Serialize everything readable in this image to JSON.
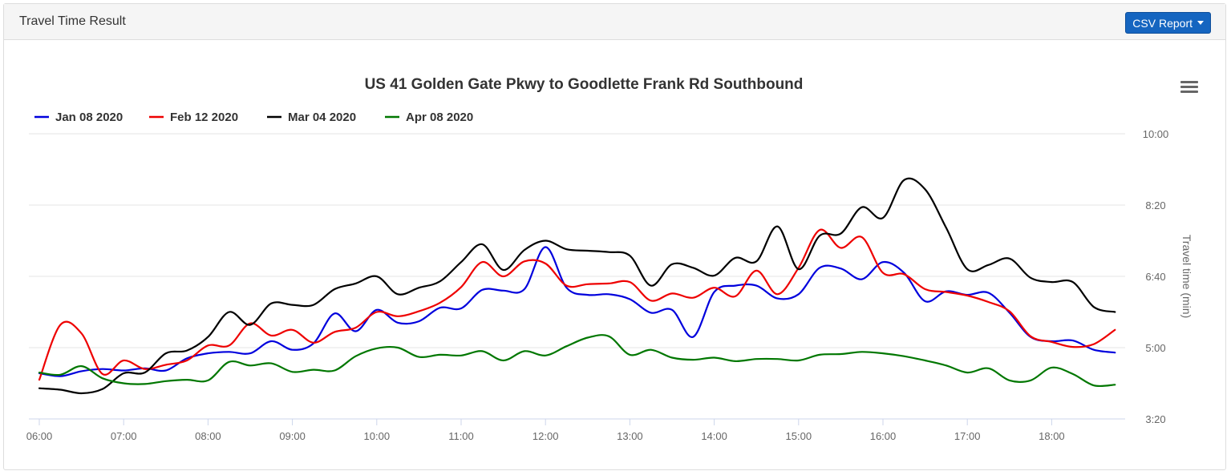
{
  "header": {
    "title": "Travel Time Result",
    "csv_button_label": "CSV Report"
  },
  "colors": {
    "Jan 08 2020": "#0000dd",
    "Feb 12 2020": "#ee0000",
    "Mar 04 2020": "#000000",
    "Apr 08 2020": "#007700"
  },
  "icons": {
    "menu": "hamburger-menu-icon"
  },
  "chart_data": {
    "type": "line",
    "title": "US 41 Golden Gate Pkwy to Goodlette Frank Rd Southbound",
    "xlabel": "",
    "ylabel": "Travel time (min)",
    "xlim": [
      "06:00",
      "18:50"
    ],
    "ylim": [
      200,
      600
    ],
    "y_ticks": [
      200,
      300,
      400,
      500,
      600
    ],
    "y_tick_labels": [
      "3:20",
      "5:00",
      "6:40",
      "8:20",
      "10:00"
    ],
    "x_ticks": [
      "06:00",
      "07:00",
      "08:00",
      "09:00",
      "10:00",
      "11:00",
      "12:00",
      "13:00",
      "14:00",
      "15:00",
      "16:00",
      "17:00",
      "18:00"
    ],
    "x": [
      "06:00",
      "06:15",
      "06:30",
      "06:45",
      "07:00",
      "07:15",
      "07:30",
      "07:45",
      "08:00",
      "08:15",
      "08:30",
      "08:45",
      "09:00",
      "09:15",
      "09:30",
      "09:45",
      "10:00",
      "10:15",
      "10:30",
      "10:45",
      "11:00",
      "11:15",
      "11:30",
      "11:45",
      "12:00",
      "12:15",
      "12:30",
      "12:45",
      "13:00",
      "13:15",
      "13:30",
      "13:45",
      "14:00",
      "14:15",
      "14:30",
      "14:45",
      "15:00",
      "15:15",
      "15:30",
      "15:45",
      "16:00",
      "16:15",
      "16:30",
      "16:45",
      "17:00",
      "17:15",
      "17:30",
      "17:45",
      "18:00",
      "18:15",
      "18:30",
      "18:45"
    ],
    "grid": true,
    "legend": "top-left",
    "series": [
      {
        "name": "Jan 08 2020",
        "values": [
          264,
          260,
          267,
          270,
          268,
          271,
          268,
          285,
          292,
          294,
          292,
          309,
          297,
          306,
          348,
          323,
          353,
          335,
          337,
          356,
          355,
          381,
          380,
          382,
          441,
          384,
          374,
          375,
          368,
          349,
          353,
          315,
          378,
          387,
          387,
          369,
          375,
          412,
          411,
          396,
          420,
          405,
          365,
          379,
          374,
          377,
          349,
          315,
          309,
          310,
          297,
          293
        ]
      },
      {
        "name": "Feb 12 2020",
        "values": [
          255,
          332,
          320,
          263,
          282,
          270,
          276,
          282,
          303,
          303,
          334,
          317,
          325,
          307,
          322,
          328,
          350,
          344,
          351,
          363,
          385,
          420,
          400,
          421,
          418,
          387,
          389,
          390,
          392,
          366,
          376,
          370,
          384,
          372,
          408,
          375,
          412,
          465,
          440,
          455,
          405,
          403,
          382,
          378,
          373,
          364,
          351,
          316,
          308,
          301,
          305,
          325
        ]
      },
      {
        "name": "Mar 04 2020",
        "values": [
          243,
          241,
          236,
          242,
          264,
          265,
          292,
          296,
          315,
          350,
          332,
          362,
          360,
          360,
          382,
          390,
          400,
          375,
          384,
          393,
          420,
          445,
          409,
          437,
          450,
          438,
          436,
          434,
          429,
          387,
          417,
          412,
          401,
          426,
          421,
          470,
          410,
          457,
          460,
          497,
          482,
          535,
          522,
          468,
          410,
          416,
          425,
          398,
          392,
          392,
          357,
          350
        ]
      },
      {
        "name": "Apr 08 2020",
        "values": [
          265,
          262,
          274,
          257,
          250,
          249,
          253,
          255,
          254,
          280,
          275,
          278,
          266,
          269,
          268,
          288,
          299,
          300,
          287,
          290,
          289,
          295,
          282,
          295,
          289,
          302,
          314,
          316,
          290,
          297,
          286,
          283,
          286,
          281,
          284,
          284,
          282,
          290,
          291,
          294,
          292,
          288,
          282,
          275,
          265,
          271,
          254,
          254,
          272,
          263,
          247,
          248
        ]
      }
    ]
  }
}
